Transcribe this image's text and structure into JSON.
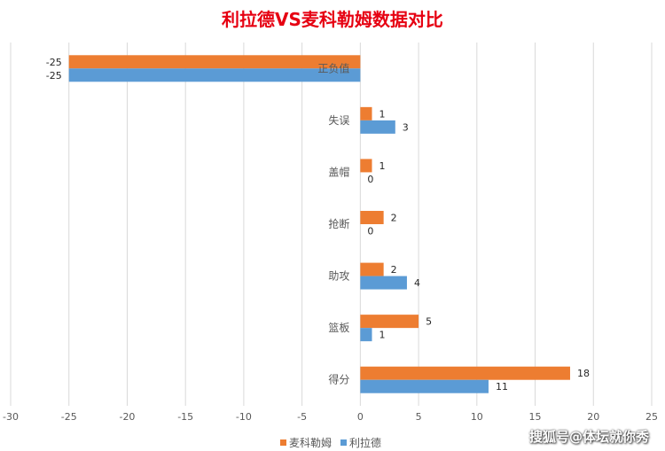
{
  "chart_data": {
    "type": "bar",
    "orientation": "horizontal",
    "title": "利拉德VS麦科勒姆数据对比",
    "categories": [
      "正负值",
      "失误",
      "盖帽",
      "抢断",
      "助攻",
      "篮板",
      "得分"
    ],
    "series": [
      {
        "name": "麦科勒姆",
        "color": "#ed7d31",
        "values": [
          -25,
          1,
          1,
          2,
          2,
          5,
          18
        ]
      },
      {
        "name": "利拉德",
        "color": "#5b9bd5",
        "values": [
          -25,
          3,
          0,
          0,
          4,
          1,
          11
        ]
      }
    ],
    "xlim": [
      -30,
      25
    ],
    "xticks": [
      -30,
      -25,
      -20,
      -15,
      -10,
      -5,
      0,
      5,
      10,
      15,
      20,
      25
    ],
    "grid": true,
    "legend_position": "bottom"
  },
  "watermark": "搜狐号@体坛就你秀"
}
